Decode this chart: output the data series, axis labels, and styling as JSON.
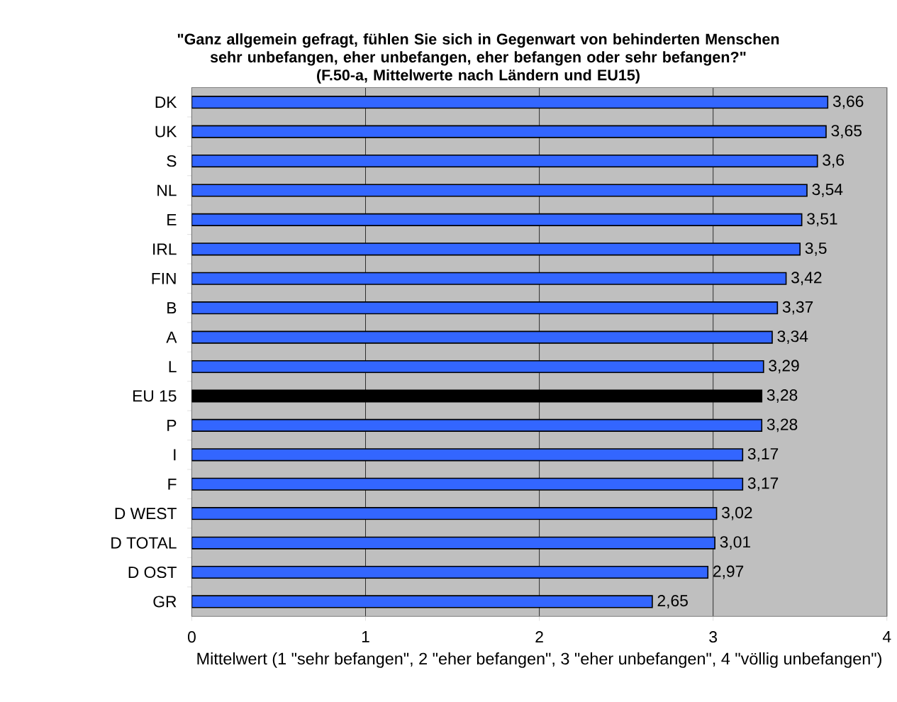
{
  "chart_data": {
    "type": "bar",
    "orientation": "horizontal",
    "title": "\"Ganz allgemein gefragt, fühlen Sie sich in Gegenwart von behinderten Menschen sehr unbefangen, eher unbefangen, eher befangen oder sehr befangen?\"",
    "subtitle": "(F.50-a, Mittelwerte nach Ländern und EU15)",
    "xlabel": "Mittelwert (1 \"sehr befangen\", 2 \"eher befangen\", 3 \"eher unbefangen\", 4 \"völlig unbefangen\")",
    "categories": [
      "DK",
      "UK",
      "S",
      "NL",
      "E",
      "IRL",
      "FIN",
      "B",
      "A",
      "L",
      "EU 15",
      "P",
      "I",
      "F",
      "D WEST",
      "D TOTAL",
      "D OST",
      "GR"
    ],
    "values": [
      3.66,
      3.65,
      3.6,
      3.54,
      3.51,
      3.5,
      3.42,
      3.37,
      3.34,
      3.29,
      3.28,
      3.28,
      3.17,
      3.17,
      3.02,
      3.01,
      2.97,
      2.65
    ],
    "value_labels": [
      "3,66",
      "3,65",
      "3,6",
      "3,54",
      "3,51",
      "3,5",
      "3,42",
      "3,37",
      "3,34",
      "3,29",
      "3,28",
      "3,28",
      "3,17",
      "3,17",
      "3,02",
      "3,01",
      "2,97",
      "2,65"
    ],
    "colors": [
      "#3366ff",
      "#3366ff",
      "#3366ff",
      "#3366ff",
      "#3366ff",
      "#3366ff",
      "#3366ff",
      "#3366ff",
      "#3366ff",
      "#3366ff",
      "#000000",
      "#3366ff",
      "#3366ff",
      "#3366ff",
      "#3366ff",
      "#3366ff",
      "#3366ff",
      "#3366ff"
    ],
    "xlim": [
      0,
      4
    ],
    "xticks": [
      0,
      1,
      2,
      3,
      4
    ],
    "grid": "x"
  }
}
